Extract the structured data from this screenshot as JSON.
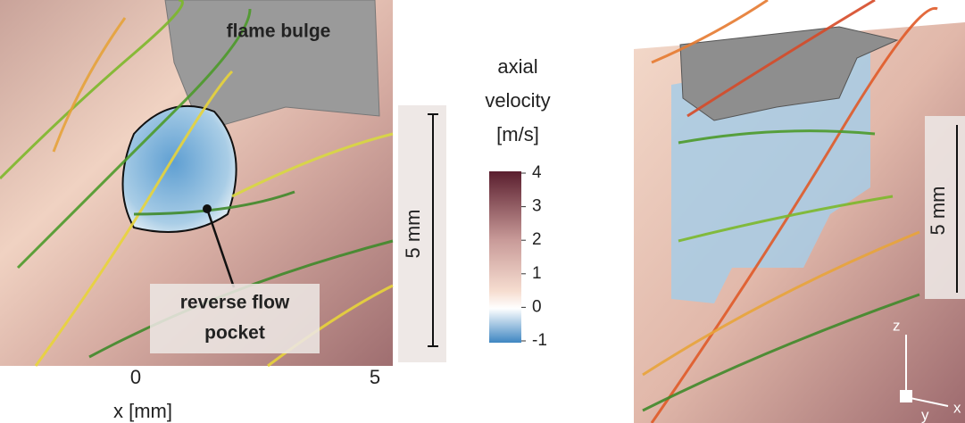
{
  "left_panel": {
    "flame_label": "flame bulge",
    "pocket_label": [
      "reverse flow",
      "pocket"
    ],
    "scale_bar": "5 mm",
    "x_axis": {
      "ticks": [
        0,
        5
      ],
      "label": "x [mm]"
    }
  },
  "colorbar": {
    "title": [
      "axial",
      "velocity",
      "[m/s]"
    ],
    "ticks": [
      4,
      3,
      2,
      1,
      0,
      -1
    ]
  },
  "right_panel": {
    "scale_bar": "5 mm",
    "axes": [
      "z",
      "x",
      "y"
    ]
  }
}
